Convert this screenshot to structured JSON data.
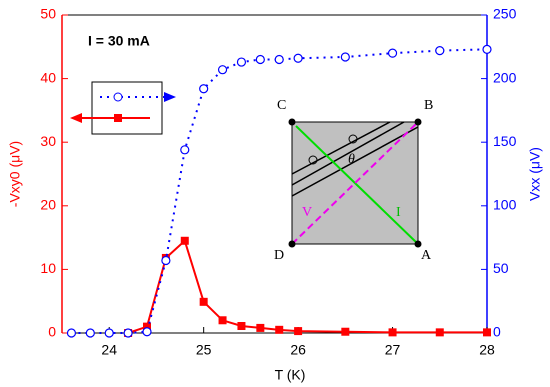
{
  "chart_data": {
    "type": "line",
    "annotation": "I = 30 mA",
    "x_label": "T (K)",
    "y_label": "-Vxy0 (μV)",
    "y2_label": "Vxx (μV)",
    "x": [
      23.6,
      23.8,
      24.0,
      24.2,
      24.4,
      24.6,
      24.8,
      25.0,
      25.2,
      25.4,
      25.6,
      25.8,
      26.0,
      26.5,
      27.0,
      27.5,
      28.0
    ],
    "series": [
      {
        "color": "#ff0000",
        "marker": "square",
        "linestyle": "solid",
        "values": [
          null,
          null,
          null,
          0,
          1.0,
          11.8,
          14.5,
          4.9,
          2.0,
          1.1,
          0.8,
          0.5,
          0.3,
          0.2,
          0.1,
          0.1,
          0.1
        ]
      },
      {
        "color": "#0000ff",
        "marker": "circle",
        "linestyle": "dotted",
        "axis": "y2",
        "values": [
          0,
          0,
          0,
          0,
          1,
          57,
          144,
          192,
          207,
          213,
          215,
          215,
          216,
          217,
          220,
          222,
          223
        ]
      }
    ],
    "xlim": [
      23.5,
      28
    ],
    "xticks": [
      24,
      25,
      26,
      27,
      28
    ],
    "ylim": [
      0,
      50
    ],
    "yticks": [
      0,
      10,
      20,
      30,
      40,
      50
    ],
    "y2lim": [
      0,
      250
    ],
    "y2ticks": [
      0,
      50,
      100,
      150,
      200,
      250
    ],
    "inset_labels": [
      "C",
      "B",
      "D",
      "A",
      "V",
      "I",
      "θ"
    ]
  }
}
